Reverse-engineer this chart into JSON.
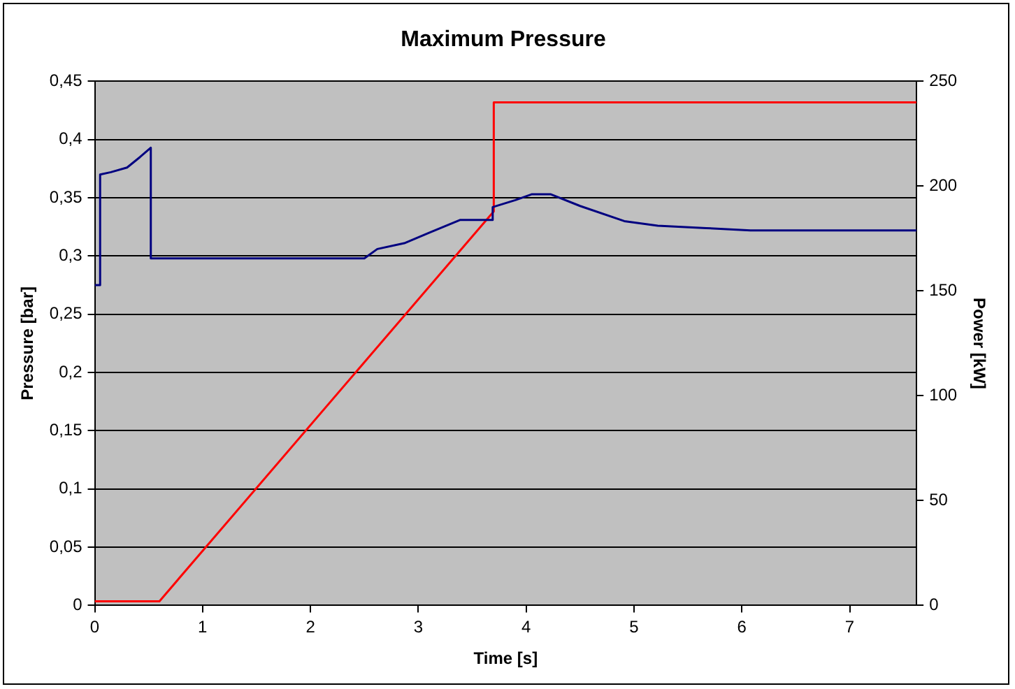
{
  "chart_data": {
    "type": "line",
    "title": "Maximum Pressure",
    "xlabel": "Time [s]",
    "ylabel": "Pressure [bar]",
    "y2label": "Power [kW]",
    "xlim": [
      0,
      7.62
    ],
    "xticks": [
      0,
      1,
      2,
      3,
      4,
      5,
      6,
      7
    ],
    "ylim": [
      0,
      0.45
    ],
    "yticks": [
      0,
      {
        "value": 0.05,
        "label": "0,05"
      },
      {
        "value": 0.1,
        "label": "0,1"
      },
      {
        "value": 0.15,
        "label": "0,15"
      },
      {
        "value": 0.2,
        "label": "0,2"
      },
      {
        "value": 0.25,
        "label": "0,25"
      },
      {
        "value": 0.3,
        "label": "0,3"
      },
      {
        "value": 0.35,
        "label": "0,35"
      },
      {
        "value": 0.4,
        "label": "0,4"
      },
      {
        "value": 0.45,
        "label": "0,45"
      }
    ],
    "y2lim": [
      0,
      250
    ],
    "y2ticks": [
      0,
      50,
      100,
      150,
      200,
      250
    ],
    "grid": "y",
    "legend": false,
    "marker": "none",
    "line_style": "solid",
    "series": [
      {
        "color": "#000080",
        "x": [
          0,
          0.05,
          0.05,
          0.15,
          0.3,
          0.42,
          0.52,
          0.52,
          1.5,
          2.5,
          2.62,
          2.87,
          3.1,
          3.39,
          3.69,
          3.69,
          3.9,
          4.05,
          4.23,
          4.5,
          4.91,
          5.22,
          5.67,
          6.08,
          7.62
        ],
        "values": [
          0.275,
          0.275,
          0.37,
          0.372,
          0.376,
          0.385,
          0.393,
          0.298,
          0.298,
          0.298,
          0.306,
          0.311,
          0.32,
          0.331,
          0.331,
          0.342,
          0.348,
          0.353,
          0.353,
          0.343,
          0.33,
          0.326,
          0.324,
          0.322,
          0.322
        ]
      },
      {
        "color": "#ff0000",
        "axis": "y2",
        "x": [
          0,
          0.6,
          3.7,
          3.7,
          7.62
        ],
        "values": [
          2,
          2,
          188,
          240,
          240
        ]
      }
    ]
  }
}
